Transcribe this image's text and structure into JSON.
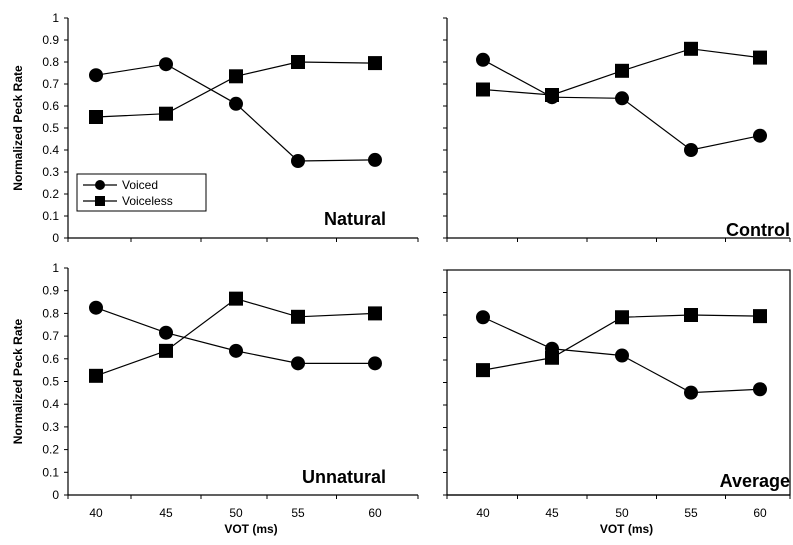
{
  "chart_data": [
    {
      "type": "line",
      "title": "Natural",
      "x": [
        40,
        45,
        50,
        55,
        60
      ],
      "ylabel": "Normalized Peck Rate",
      "xlabel": "",
      "ylim": [
        0,
        1
      ],
      "yticks": [
        "0",
        "0.1",
        "0.2",
        "0.3",
        "0.4",
        "0.5",
        "0.6",
        "0.7",
        "0.8",
        "0.9",
        "1"
      ],
      "xticks": [],
      "legend": "lower-left",
      "series": [
        {
          "name": "Voiced",
          "marker": "circle",
          "values": [
            0.74,
            0.79,
            0.61,
            0.35,
            0.355
          ]
        },
        {
          "name": "Voiceless",
          "marker": "square",
          "values": [
            0.55,
            0.565,
            0.735,
            0.8,
            0.795
          ]
        }
      ]
    },
    {
      "type": "line",
      "title": "Control",
      "x": [
        40,
        45,
        50,
        55,
        60
      ],
      "ylabel": "",
      "xlabel": "",
      "ylim": [
        0,
        1
      ],
      "yticks": [],
      "xticks": [],
      "series": [
        {
          "name": "Voiced",
          "marker": "circle",
          "values": [
            0.81,
            0.64,
            0.635,
            0.4,
            0.465
          ]
        },
        {
          "name": "Voiceless",
          "marker": "square",
          "values": [
            0.675,
            0.65,
            0.76,
            0.86,
            0.82
          ]
        }
      ]
    },
    {
      "type": "line",
      "title": "Unnatural",
      "x": [
        40,
        45,
        50,
        55,
        60
      ],
      "ylabel": "Normalized Peck Rate",
      "xlabel": "VOT (ms)",
      "ylim": [
        0,
        1
      ],
      "yticks": [
        "0",
        "0.1",
        "0.2",
        "0.3",
        "0.4",
        "0.5",
        "0.6",
        "0.7",
        "0.8",
        "0.9",
        "1"
      ],
      "xticks": [
        "40",
        "45",
        "50",
        "55",
        "60"
      ],
      "series": [
        {
          "name": "Voiced",
          "marker": "circle",
          "values": [
            0.825,
            0.715,
            0.635,
            0.58,
            0.58
          ]
        },
        {
          "name": "Voiceless",
          "marker": "square",
          "values": [
            0.525,
            0.635,
            0.865,
            0.785,
            0.8
          ]
        }
      ]
    },
    {
      "type": "line",
      "title": "Average",
      "x": [
        40,
        45,
        50,
        55,
        60
      ],
      "ylabel": "",
      "xlabel": "VOT (ms)",
      "ylim": [
        0,
        1
      ],
      "yticks": [],
      "xticks": [
        "40",
        "45",
        "50",
        "55",
        "60"
      ],
      "series": [
        {
          "name": "Voiced",
          "marker": "circle",
          "values": [
            0.79,
            0.65,
            0.62,
            0.455,
            0.47
          ]
        },
        {
          "name": "Voiceless",
          "marker": "square",
          "values": [
            0.555,
            0.61,
            0.79,
            0.8,
            0.795
          ]
        }
      ]
    }
  ]
}
